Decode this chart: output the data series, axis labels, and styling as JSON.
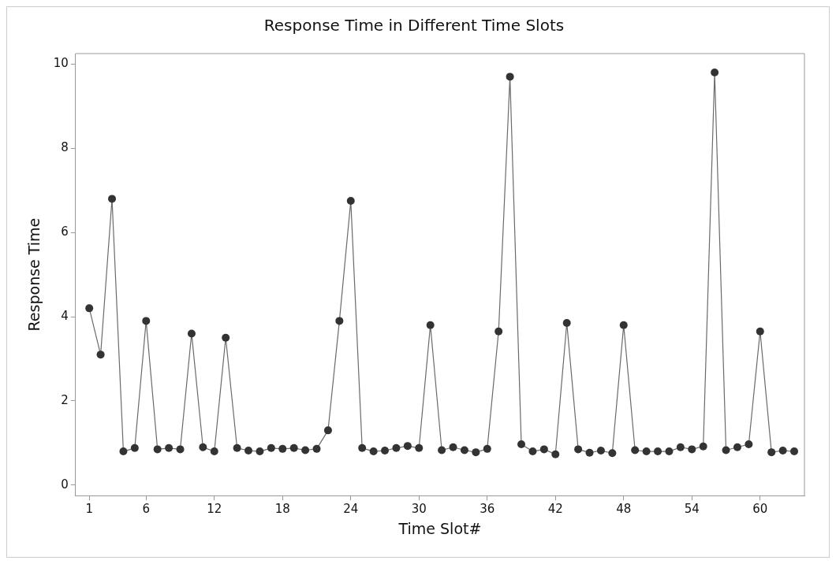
{
  "chart_data": {
    "type": "line",
    "title": "Response Time in Different Time Slots",
    "xlabel": "Time Slot#",
    "ylabel": "Response Time",
    "x": [
      1,
      2,
      3,
      4,
      5,
      6,
      7,
      8,
      9,
      10,
      11,
      12,
      13,
      14,
      15,
      16,
      17,
      18,
      19,
      20,
      21,
      22,
      23,
      24,
      25,
      26,
      27,
      28,
      29,
      30,
      31,
      32,
      33,
      34,
      35,
      36,
      37,
      38,
      39,
      40,
      41,
      42,
      43,
      44,
      45,
      46,
      47,
      48,
      49,
      50,
      51,
      52,
      53,
      54,
      55,
      56,
      57,
      58,
      59,
      60,
      61,
      62,
      63
    ],
    "series": [
      {
        "color": "#333333",
        "values": [
          4.2,
          3.1,
          6.8,
          0.8,
          0.88,
          3.9,
          0.85,
          0.88,
          0.85,
          3.6,
          0.9,
          0.8,
          3.5,
          0.88,
          0.82,
          0.8,
          0.88,
          0.86,
          0.88,
          0.83,
          0.86,
          1.3,
          3.9,
          6.75,
          0.88,
          0.8,
          0.82,
          0.88,
          0.93,
          0.88,
          3.8,
          0.83,
          0.9,
          0.83,
          0.78,
          0.86,
          3.65,
          9.7,
          0.97,
          0.8,
          0.85,
          0.73,
          3.85,
          0.85,
          0.77,
          0.82,
          0.76,
          3.8,
          0.83,
          0.8,
          0.8,
          0.8,
          0.9,
          0.85,
          0.92,
          9.8,
          0.83,
          0.9,
          0.97,
          3.65,
          0.78,
          0.82,
          0.8
        ]
      }
    ],
    "xlim": [
      -0.2,
      63.9
    ],
    "xticks": [
      1,
      6,
      12,
      18,
      24,
      30,
      36,
      42,
      48,
      54,
      60
    ],
    "ylim": [
      -0.25,
      10.25
    ],
    "yticks": [
      0,
      2,
      4,
      6,
      8,
      10
    ],
    "grid": false,
    "legend": false,
    "marker": "circle",
    "line_style": "solid"
  }
}
